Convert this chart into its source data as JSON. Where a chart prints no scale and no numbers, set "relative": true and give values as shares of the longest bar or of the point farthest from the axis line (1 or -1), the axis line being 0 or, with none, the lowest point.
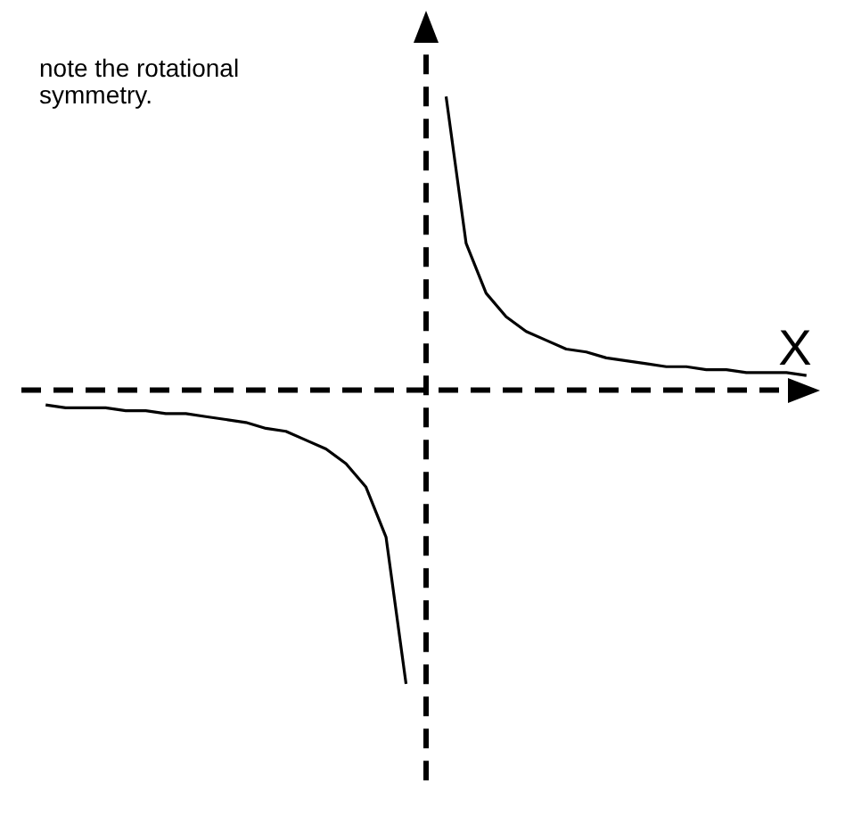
{
  "chart_data": {
    "type": "line",
    "relative": true,
    "xlabel": "X",
    "annotations": [
      "note the rotational symmetry."
    ],
    "legend": false,
    "marker": "none",
    "line_style": "solid",
    "categories": [
      null,
      null,
      null,
      null,
      null,
      null,
      null,
      null,
      null,
      null,
      null,
      null,
      null,
      null,
      null,
      null,
      null,
      null,
      null,
      null,
      null,
      null,
      null,
      null,
      null,
      null,
      null,
      null,
      null,
      null,
      null,
      null,
      null,
      null,
      null,
      null,
      null,
      null,
      null
    ],
    "series": [
      {
        "color": "#000000",
        "values": [
          -0.05,
          -0.06,
          -0.06,
          -0.06,
          -0.07,
          -0.07,
          -0.08,
          -0.08,
          -0.09,
          -0.1,
          -0.11,
          -0.13,
          -0.14,
          -0.17,
          -0.2,
          -0.25,
          -0.33,
          -0.5,
          -1,
          null,
          null,
          null,
          null,
          null,
          null,
          null,
          null,
          null,
          null,
          null,
          null,
          null,
          null,
          null,
          null,
          null,
          null,
          null,
          null
        ]
      },
      {
        "color": "#000000",
        "values": [
          null,
          null,
          null,
          null,
          null,
          null,
          null,
          null,
          null,
          null,
          null,
          null,
          null,
          null,
          null,
          null,
          null,
          null,
          null,
          null,
          1,
          0.5,
          0.33,
          0.25,
          0.2,
          0.17,
          0.14,
          0.13,
          0.11,
          0.1,
          0.09,
          0.08,
          0.08,
          0.07,
          0.07,
          0.06,
          0.06,
          0.06,
          0.05
        ]
      }
    ]
  }
}
